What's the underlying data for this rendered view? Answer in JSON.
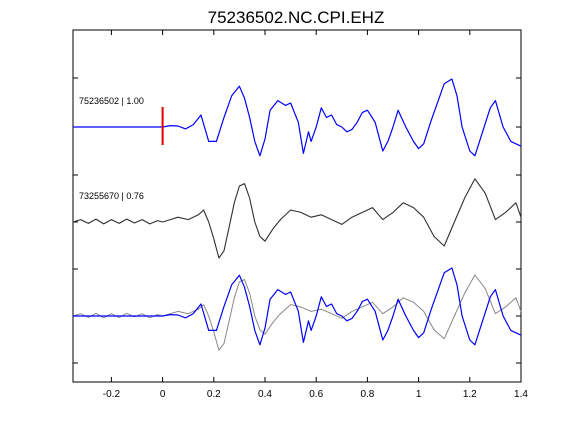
{
  "chart_data": {
    "type": "line",
    "title": "75236502.NC.CPI.EHZ",
    "xlabel": "",
    "ylabel": "",
    "xlim": [
      -0.35,
      1.4
    ],
    "x_ticks": [
      -0.2,
      0,
      0.2,
      0.4,
      0.6,
      0.8,
      1.0,
      1.2,
      1.4
    ],
    "x_tick_labels": [
      "-0.2",
      "0",
      "0.2",
      "0.4",
      "0.6",
      "0.8",
      "1",
      "1.2",
      "1.4"
    ],
    "pick_marker": {
      "x": 0,
      "color": "#e00000"
    },
    "series": [
      {
        "label": "75236502 | 1.00",
        "color": "#0000ff",
        "x": [
          -0.35,
          -0.3,
          -0.25,
          -0.2,
          -0.15,
          -0.1,
          -0.05,
          0,
          0.03,
          0.06,
          0.09,
          0.12,
          0.15,
          0.18,
          0.21,
          0.24,
          0.27,
          0.3,
          0.32,
          0.34,
          0.36,
          0.38,
          0.4,
          0.42,
          0.45,
          0.48,
          0.5,
          0.53,
          0.55,
          0.57,
          0.58,
          0.6,
          0.62,
          0.64,
          0.66,
          0.68,
          0.7,
          0.72,
          0.74,
          0.76,
          0.78,
          0.8,
          0.83,
          0.86,
          0.88,
          0.9,
          0.92,
          0.95,
          0.98,
          1.0,
          1.02,
          1.05,
          1.08,
          1.1,
          1.13,
          1.15,
          1.17,
          1.2,
          1.22,
          1.25,
          1.28,
          1.3,
          1.33,
          1.36,
          1.4
        ],
        "y": [
          0,
          0,
          0,
          0,
          0,
          0,
          0,
          0,
          0.03,
          0.02,
          -0.04,
          0.05,
          0.25,
          -0.3,
          -0.3,
          0.2,
          0.65,
          0.85,
          0.6,
          0.2,
          -0.3,
          -0.6,
          -0.25,
          0.35,
          0.55,
          0.45,
          0.5,
          0.1,
          -0.55,
          -0.1,
          -0.3,
          0.0,
          0.4,
          0.2,
          0.25,
          0.05,
          0.0,
          -0.1,
          -0.05,
          0.1,
          0.3,
          0.35,
          0.1,
          -0.5,
          -0.3,
          0.0,
          0.35,
          0.0,
          -0.3,
          -0.45,
          -0.35,
          0.15,
          0.6,
          0.9,
          1.0,
          0.65,
          0.0,
          -0.5,
          -0.6,
          -0.1,
          0.4,
          0.55,
          0.0,
          -0.3,
          -0.4
        ]
      },
      {
        "label": "73255670 | 0.76",
        "color": "#303030",
        "x": [
          -0.35,
          -0.32,
          -0.29,
          -0.26,
          -0.23,
          -0.2,
          -0.17,
          -0.14,
          -0.11,
          -0.08,
          -0.05,
          -0.02,
          0.0,
          0.03,
          0.06,
          0.1,
          0.14,
          0.16,
          0.18,
          0.2,
          0.22,
          0.24,
          0.26,
          0.28,
          0.3,
          0.32,
          0.34,
          0.36,
          0.38,
          0.4,
          0.43,
          0.46,
          0.5,
          0.54,
          0.58,
          0.62,
          0.66,
          0.7,
          0.74,
          0.78,
          0.82,
          0.86,
          0.9,
          0.94,
          0.98,
          1.02,
          1.06,
          1.1,
          1.14,
          1.18,
          1.22,
          1.26,
          1.3,
          1.34,
          1.38,
          1.4
        ],
        "y": [
          0.0,
          0.05,
          -0.03,
          0.06,
          -0.04,
          0.05,
          -0.03,
          0.06,
          -0.02,
          0.05,
          -0.04,
          0.03,
          0.0,
          0.05,
          0.1,
          0.05,
          0.15,
          0.25,
          0.0,
          -0.35,
          -0.75,
          -0.6,
          -0.1,
          0.4,
          0.75,
          0.8,
          0.5,
          0.0,
          -0.3,
          -0.4,
          -0.15,
          0.05,
          0.25,
          0.2,
          0.1,
          0.15,
          0.05,
          -0.05,
          0.1,
          0.2,
          0.3,
          0.05,
          0.2,
          0.4,
          0.3,
          0.1,
          -0.3,
          -0.5,
          0.0,
          0.5,
          0.9,
          0.6,
          0.05,
          0.2,
          0.4,
          0.1
        ]
      }
    ],
    "colors": {
      "trace_primary": "#0000ff",
      "trace_secondary": "#303030",
      "overlay_gray": "#888888",
      "pick": "#e00000"
    }
  }
}
